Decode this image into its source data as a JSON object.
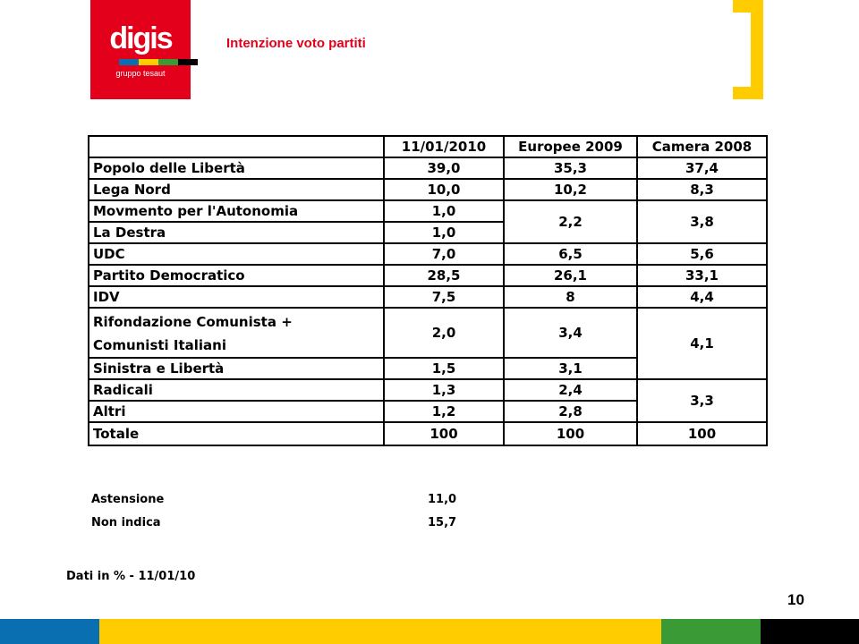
{
  "logo": {
    "name": "digis",
    "sub": "gruppo tesaut"
  },
  "title": "Intenzione voto partiti",
  "table": {
    "headers": [
      "",
      "11/01/2010",
      "Europee 2009",
      "Camera 2008"
    ],
    "rows": [
      {
        "label": "Popolo delle Libertà",
        "v1": "39,0",
        "v2": "35,3",
        "v3": "37,4"
      },
      {
        "label": "Lega Nord",
        "v1": "10,0",
        "v2": "10,2",
        "v3": "8,3"
      },
      {
        "label": "Movmento per l'Autonomia",
        "v1": "1,0",
        "v2": "2,2",
        "v3": "3,8"
      },
      {
        "label": "La Destra",
        "v1": "1,0"
      },
      {
        "label": "UDC",
        "v1": "7,0",
        "v2": "6,5",
        "v3": "5,6"
      },
      {
        "label": "Partito Democratico",
        "v1": "28,5",
        "v2": "26,1",
        "v3": "33,1"
      },
      {
        "label": "IDV",
        "v1": "7,5",
        "v2": "8",
        "v3": "4,4"
      },
      {
        "label1": "Rifondazione Comunista +",
        "label2": "Comunisti Italiani",
        "v1": "2,0",
        "v2": "3,4",
        "v3": "4,1"
      },
      {
        "label": "Sinistra e Libertà",
        "v1": "1,5",
        "v2": "3,1"
      },
      {
        "label": "Radicali",
        "v1": "1,3",
        "v2": "2,4",
        "v3": "3,3"
      },
      {
        "label": "Altri",
        "v1": "1,2",
        "v2": "2,8"
      },
      {
        "label": "Totale",
        "v1": "100",
        "v2": "100",
        "v3": "100"
      }
    ]
  },
  "extra": [
    {
      "label": "Astensione",
      "value": "11,0"
    },
    {
      "label": "Non indica",
      "value": "15,7"
    }
  ],
  "note": "Dati in % - 11/01/10",
  "page_number": "10",
  "colors": {
    "brand_red": "#e3001b",
    "accent_yellow": "#ffcc00",
    "bar_blue": "#0a6fb0",
    "bar_yellow": "#ffcc00",
    "bar_green": "#3a9a35",
    "bar_black": "#000000"
  }
}
